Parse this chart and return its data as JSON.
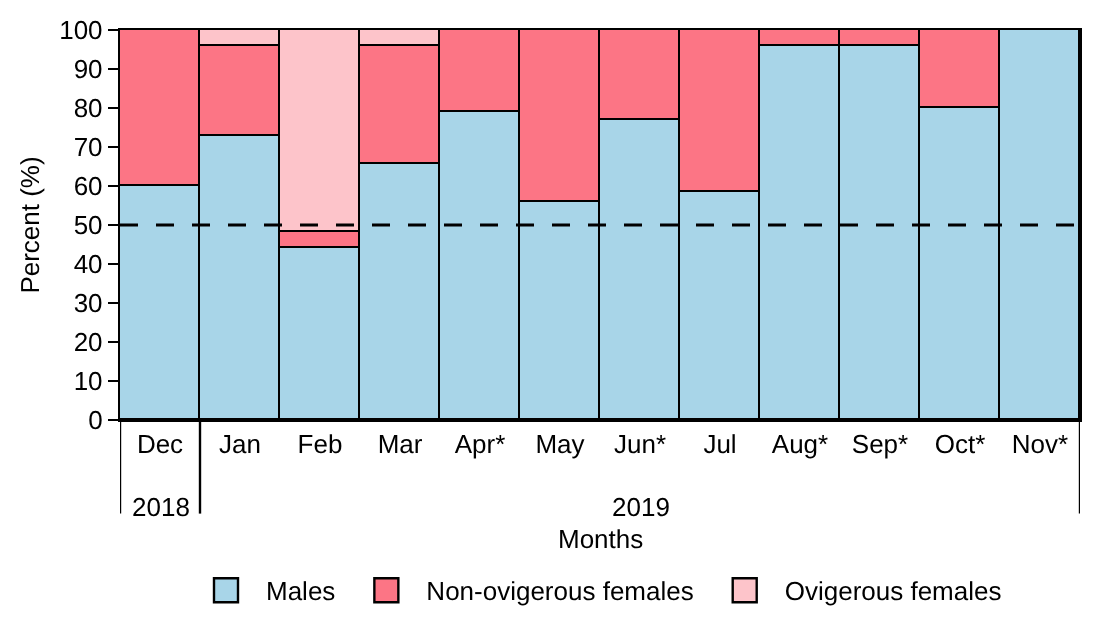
{
  "chart_data": {
    "type": "bar",
    "stacked": true,
    "xlabel": "Months",
    "ylabel": "Percent (%)",
    "categories": [
      "Dec",
      "Jan",
      "Feb",
      "Mar",
      "Apr*",
      "May",
      "Jun*",
      "Jul",
      "Aug*",
      "Sep*",
      "Oct*",
      "Nov*"
    ],
    "series": [
      {
        "name": "Males",
        "color": "#a8d5e8",
        "values": [
          60,
          73,
          44,
          65.5,
          79,
          56,
          77,
          58.5,
          96,
          96,
          80,
          100
        ]
      },
      {
        "name": "Non-ovigerous females",
        "color": "#fc7585",
        "values": [
          40,
          23,
          4,
          30.5,
          21,
          44,
          23,
          41.5,
          4,
          4,
          20,
          null
        ]
      },
      {
        "name": "Ovigerous females",
        "color": "#fdc4ca",
        "values": [
          null,
          4,
          52,
          4,
          null,
          null,
          null,
          null,
          null,
          null,
          null,
          null
        ]
      }
    ],
    "annotations": [
      "2018",
      "2019"
    ],
    "ylim": [
      0,
      100
    ],
    "yticks": [
      0,
      10,
      20,
      30,
      40,
      50,
      60,
      70,
      80,
      90,
      100
    ],
    "ref_lines": [
      {
        "axis": "y",
        "value": 50,
        "line_style": "dashed",
        "color": "#000000"
      }
    ],
    "legend": "bottom"
  }
}
